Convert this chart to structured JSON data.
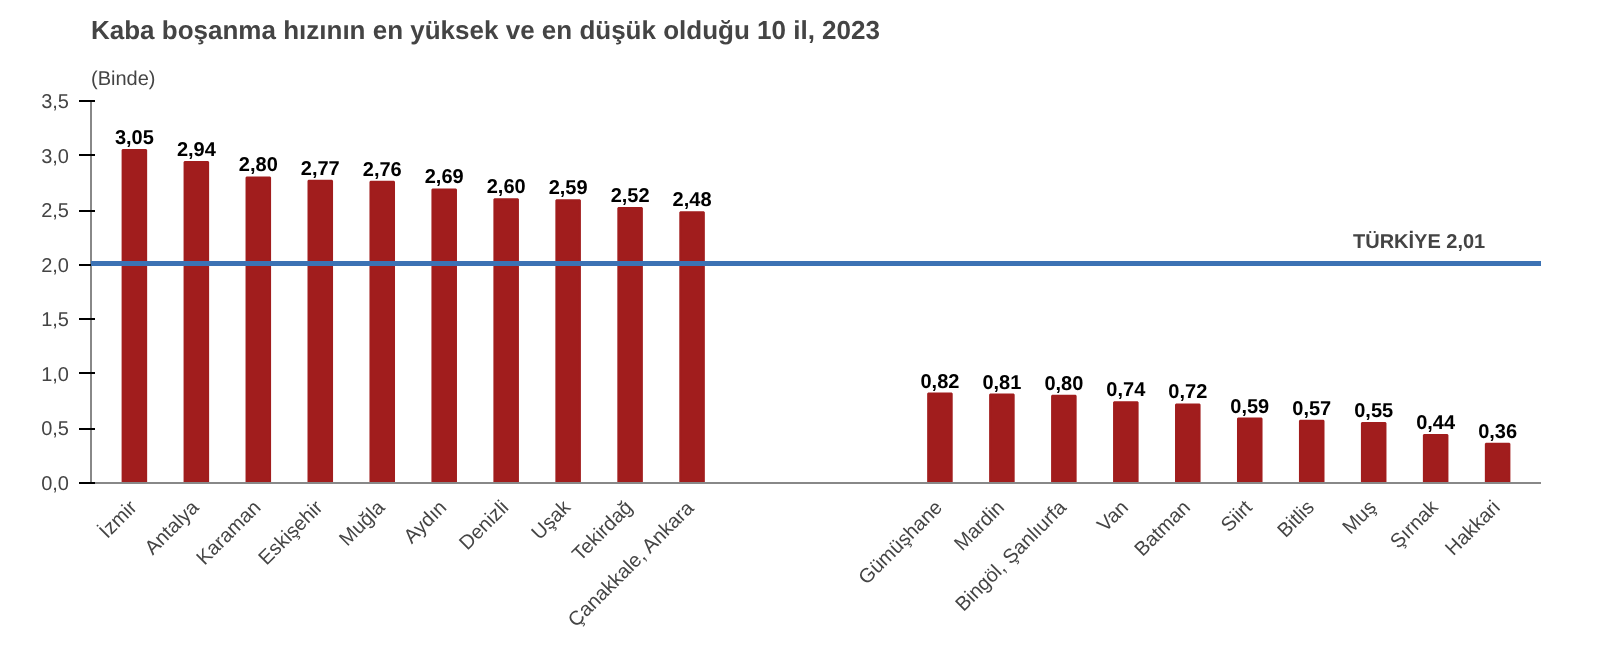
{
  "chart_data": {
    "type": "bar",
    "title": "Kaba boşanma hızının en yüksek ve en düşük olduğu 10 il, 2023",
    "ylabel": "(Binde)",
    "categories": [
      "İzmir",
      "Antalya",
      "Karaman",
      "Eskişehir",
      "Muğla",
      "Aydın",
      "Denizli",
      "Uşak",
      "Tekirdağ",
      "Çanakkale, Ankara",
      null,
      null,
      null,
      "Gümüşhane",
      "Mardin",
      "Bingöl, Şanlıurfa",
      "Van",
      "Batman",
      "Siirt",
      "Bitlis",
      "Muş",
      "Şırnak",
      "Hakkari"
    ],
    "values": [
      3.05,
      2.94,
      2.8,
      2.77,
      2.76,
      2.69,
      2.6,
      2.59,
      2.52,
      2.48,
      null,
      null,
      null,
      0.82,
      0.81,
      0.8,
      0.74,
      0.72,
      0.59,
      0.57,
      0.55,
      0.44,
      0.36
    ],
    "value_labels": [
      "3,05",
      "2,94",
      "2,80",
      "2,77",
      "2,76",
      "2,69",
      "2,60",
      "2,59",
      "2,52",
      "2,48",
      null,
      null,
      null,
      "0,82",
      "0,81",
      "0,80",
      "0,74",
      "0,72",
      "0,59",
      "0,57",
      "0,55",
      "0,44",
      "0,36"
    ],
    "color": "#a11d1d",
    "ylim": [
      0,
      3.5
    ],
    "yticks": [
      {
        "value": 0,
        "label": "0,0"
      },
      {
        "value": 0.5,
        "label": "0,5"
      },
      {
        "value": 1,
        "label": "1,0"
      },
      {
        "value": 1.5,
        "label": "1,5"
      },
      {
        "value": 2,
        "label": "2,0"
      },
      {
        "value": 2.5,
        "label": "2,5"
      },
      {
        "value": 3,
        "label": "3,0"
      },
      {
        "value": 3.5,
        "label": "3,5"
      }
    ],
    "ref_lines": [
      {
        "axis": "y",
        "value": 2.01,
        "label": "TÜRKİYE 2,01",
        "color": "#3c72b4"
      }
    ],
    "grid": false
  }
}
